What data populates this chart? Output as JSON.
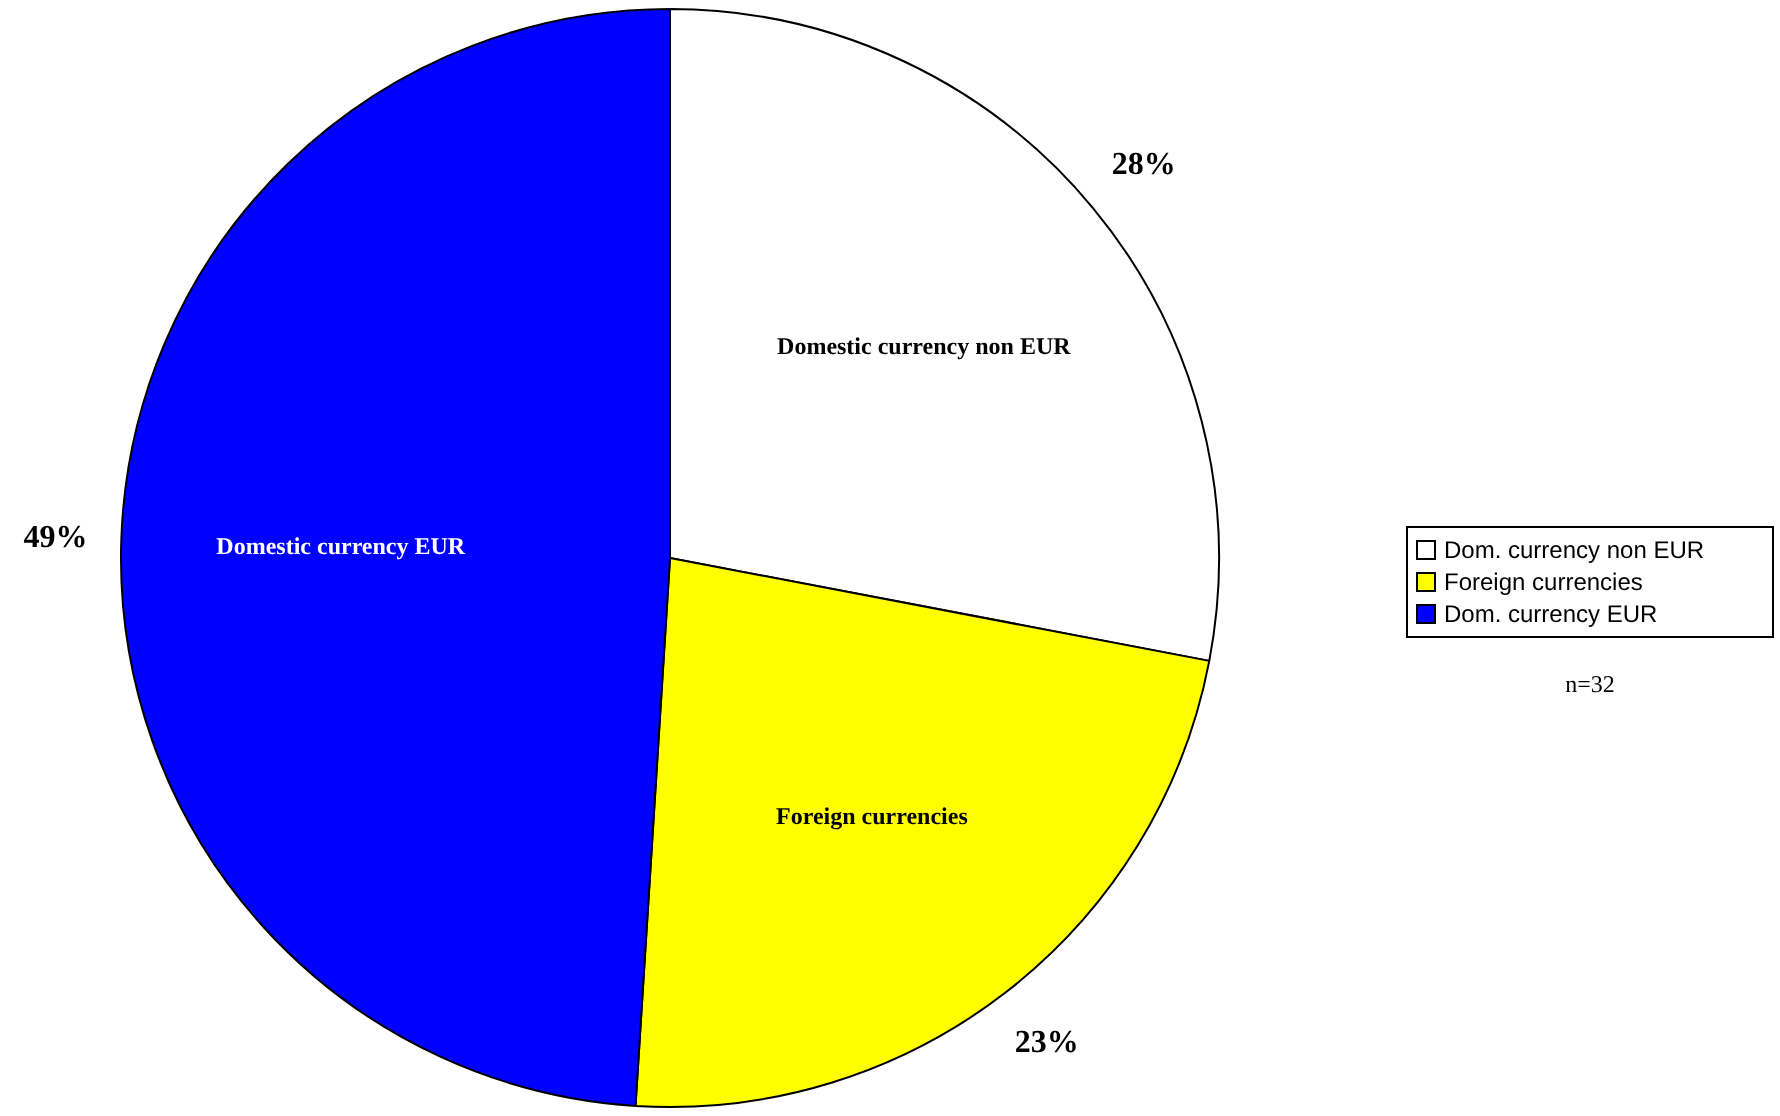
{
  "chart_data": {
    "type": "pie",
    "categories": [
      "Dom. currency non EUR",
      "Foreign currencies",
      "Dom. currency EUR"
    ],
    "values": [
      28,
      23,
      49
    ],
    "value_labels": [
      "28%",
      "23%",
      "49%"
    ],
    "colors": [
      "#ffffff",
      "#ffff00",
      "#0000ff"
    ],
    "legend": "right",
    "annotations": [
      {
        "text": "Domestic currency non EUR",
        "x": "Dom. currency non EUR"
      },
      {
        "text": "Foreign currencies",
        "x": "Foreign currencies"
      },
      {
        "text": "Domestic currency EUR",
        "x": "Dom. currency EUR"
      },
      "n=32"
    ]
  }
}
